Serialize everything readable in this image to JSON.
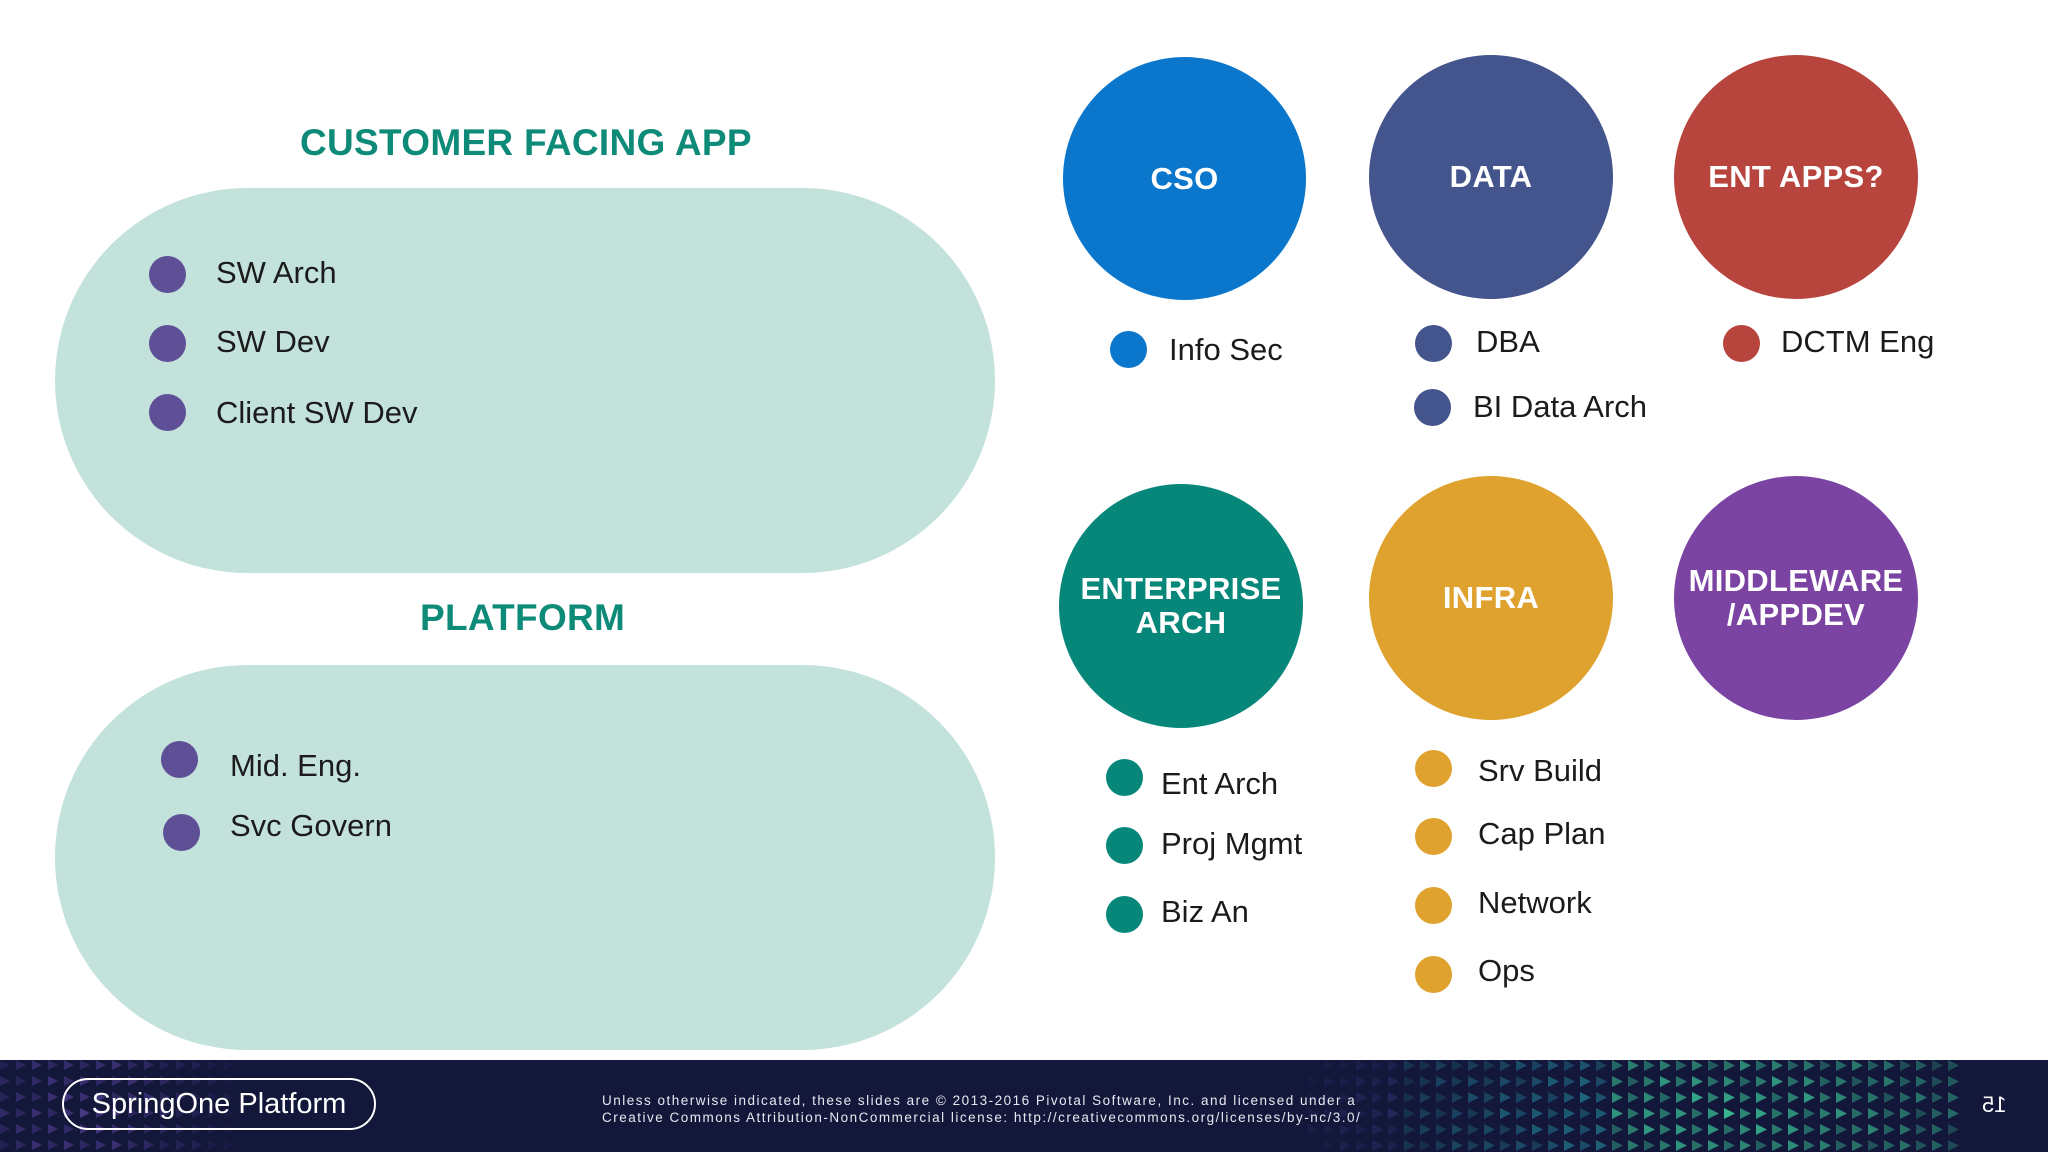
{
  "left": {
    "customer": {
      "title": "CUSTOMER FACING APP",
      "items": [
        "SW Arch",
        "SW Dev",
        "Client SW Dev"
      ]
    },
    "platform": {
      "title": "PLATFORM",
      "items": [
        "Mid. Eng.",
        "Svc Govern"
      ]
    }
  },
  "groups": [
    {
      "label": "CSO",
      "color": "#0a77cc",
      "items": [
        "Info Sec"
      ]
    },
    {
      "label": "DATA",
      "color": "#44548c",
      "items": [
        "DBA",
        "BI Data Arch"
      ]
    },
    {
      "label": "ENT APPS?",
      "color": "#b8443e",
      "items": [
        "DCTM Eng"
      ]
    },
    {
      "label_line1": "ENTERPRISE",
      "label_line2": "ARCH",
      "color": "#07877a",
      "items": [
        "Ent Arch",
        "Proj Mgmt",
        "Biz An"
      ]
    },
    {
      "label": "INFRA",
      "color": "#e0a22e",
      "items": [
        "Srv Build",
        "Cap Plan",
        "Network",
        "Ops"
      ]
    },
    {
      "label_line1": "MIDDLEWARE",
      "label_line2": "/APPDEV",
      "color": "#7b44a2",
      "items": []
    }
  ],
  "footer": {
    "brand": "SpringOne Platform",
    "license_line1": "Unless otherwise indicated, these slides are © 2013-2016 Pivotal Software, Inc. and licensed under a",
    "license_line2": "Creative Commons Attribution-NonCommercial license: http://creativecommons.org/licenses/by-nc/3.0/",
    "page_number": "15"
  },
  "colors": {
    "teal_title": "#0e8a78",
    "pill_bg": "#c3e2dc",
    "left_dot": "#5f4f97",
    "footer_bg": "#13173a"
  }
}
